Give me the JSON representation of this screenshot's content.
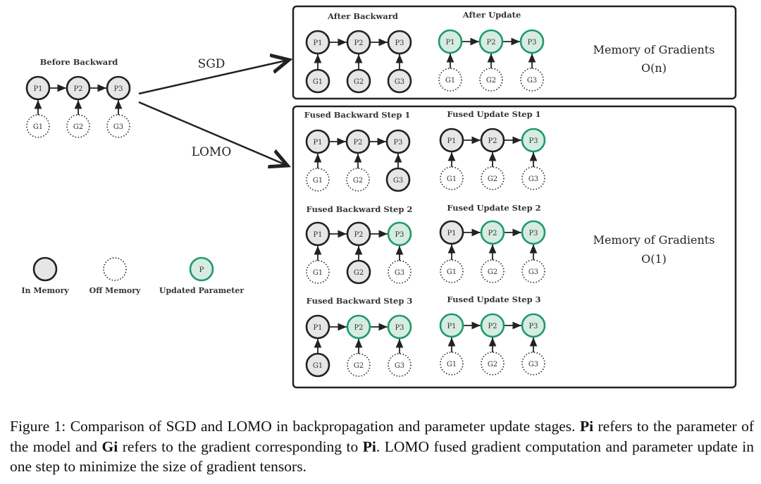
{
  "colors": {
    "in_memory_fill": "#e6e6e6",
    "stroke": "#222222",
    "updated_stroke": "#1e9a6a",
    "updated_fill": "#d6ece3"
  },
  "arrows": {
    "sgd": "SGD",
    "lomo": "LOMO"
  },
  "memory_labels": {
    "sgd": {
      "title": "Memory of Gradients",
      "complexity": "O(n)"
    },
    "lomo": {
      "title": "Memory of Gradients",
      "complexity": "O(1)"
    }
  },
  "legend": [
    {
      "state": "mem",
      "node_label": "",
      "label": "In Memory"
    },
    {
      "state": "off",
      "node_label": "",
      "label": "Off Memory"
    },
    {
      "state": "upd",
      "node_label": "P",
      "label": "Updated Parameter"
    }
  ],
  "graphs": [
    {
      "id": "before-backward",
      "title": "Before Backward",
      "params": [
        "mem",
        "mem",
        "mem"
      ],
      "grads": [
        "off",
        "off",
        "off"
      ]
    },
    {
      "id": "after-backward",
      "title": "After Backward",
      "params": [
        "mem",
        "mem",
        "mem"
      ],
      "grads": [
        "mem",
        "mem",
        "mem"
      ]
    },
    {
      "id": "after-update",
      "title": "After Update",
      "params": [
        "upd",
        "upd",
        "upd"
      ],
      "grads": [
        "off",
        "off",
        "off"
      ]
    },
    {
      "id": "fused-backward-1",
      "title": "Fused Backward Step 1",
      "params": [
        "mem",
        "mem",
        "mem"
      ],
      "grads": [
        "off",
        "off",
        "mem"
      ]
    },
    {
      "id": "fused-update-1",
      "title": "Fused Update Step 1",
      "params": [
        "mem",
        "mem",
        "upd"
      ],
      "grads": [
        "off",
        "off",
        "off"
      ]
    },
    {
      "id": "fused-backward-2",
      "title": "Fused Backward Step 2",
      "params": [
        "mem",
        "mem",
        "upd"
      ],
      "grads": [
        "off",
        "mem",
        "off"
      ]
    },
    {
      "id": "fused-update-2",
      "title": "Fused Update Step 2",
      "params": [
        "mem",
        "upd",
        "upd"
      ],
      "grads": [
        "off",
        "off",
        "off"
      ]
    },
    {
      "id": "fused-backward-3",
      "title": "Fused Backward Step 3",
      "params": [
        "mem",
        "upd",
        "upd"
      ],
      "grads": [
        "mem",
        "off",
        "off"
      ]
    },
    {
      "id": "fused-update-3",
      "title": "Fused Update Step 3",
      "params": [
        "upd",
        "upd",
        "upd"
      ],
      "grads": [
        "off",
        "off",
        "off"
      ]
    }
  ],
  "node_labels": {
    "params": [
      "P1",
      "P2",
      "P3"
    ],
    "grads": [
      "G1",
      "G2",
      "G3"
    ]
  },
  "caption": {
    "prefix": "Figure 1: Comparison of SGD and LOMO in backpropagation and parameter update stages. ",
    "b1": "Pi",
    "t1": " refers to the parameter of the model and ",
    "b2": "Gi",
    "t2": " refers to the gradient corresponding to ",
    "b3": "Pi",
    "t3": ". LOMO fused gradient computation and parameter update in one step to minimize the size of gradient tensors."
  }
}
